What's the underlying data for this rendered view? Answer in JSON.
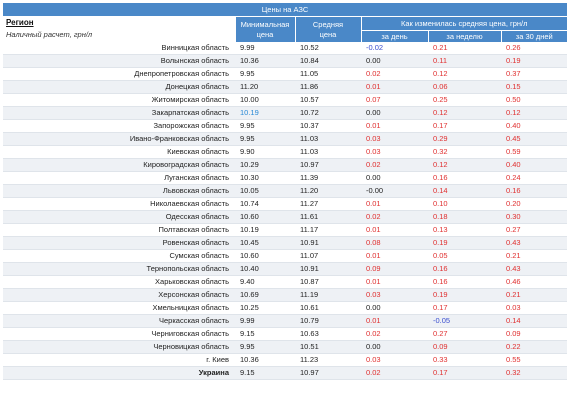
{
  "title": "Цены на АЗС",
  "header": {
    "region_label": "Регион",
    "region_sub": "Наличный расчет, грн/л",
    "min_price_line1": "Минимальная",
    "min_price_line2": "цена",
    "avg_price_line1": "Средняя",
    "avg_price_line2": "цена",
    "change_title": "Как изменилась средняя цена, грн/л",
    "per_day": "за день",
    "per_week": "за неделю",
    "per_30days": "за 30 дней"
  },
  "rows": [
    {
      "region": "Винницкая область",
      "min": "9.99",
      "avg": "10.52",
      "day": "-0.02",
      "week": "0.21",
      "month": "0.26"
    },
    {
      "region": "Волынская область",
      "min": "10.36",
      "avg": "10.84",
      "day": "0.00",
      "week": "0.11",
      "month": "0.19"
    },
    {
      "region": "Днепропетровская область",
      "min": "9.95",
      "avg": "11.05",
      "day": "0.02",
      "week": "0.12",
      "month": "0.37"
    },
    {
      "region": "Донецкая область",
      "min": "11.20",
      "avg": "11.86",
      "day": "0.01",
      "week": "0.06",
      "month": "0.15"
    },
    {
      "region": "Житомирская область",
      "min": "10.00",
      "avg": "10.57",
      "day": "0.07",
      "week": "0.25",
      "month": "0.50"
    },
    {
      "region": "Закарпатская область",
      "min": "10.19",
      "avg": "10.72",
      "day": "0.00",
      "week": "0.12",
      "month": "0.12"
    },
    {
      "region": "Запорожская область",
      "min": "9.95",
      "avg": "10.37",
      "day": "0.01",
      "week": "0.17",
      "month": "0.40"
    },
    {
      "region": "Ивано-Франковская область",
      "min": "9.95",
      "avg": "11.03",
      "day": "0.03",
      "week": "0.29",
      "month": "0.45"
    },
    {
      "region": "Киевская область",
      "min": "9.90",
      "avg": "11.03",
      "day": "0.03",
      "week": "0.32",
      "month": "0.59"
    },
    {
      "region": "Кировоградская область",
      "min": "10.29",
      "avg": "10.97",
      "day": "0.02",
      "week": "0.12",
      "month": "0.40"
    },
    {
      "region": "Луганская область",
      "min": "10.30",
      "avg": "11.39",
      "day": "0.00",
      "week": "0.16",
      "month": "0.24"
    },
    {
      "region": "Львовская область",
      "min": "10.05",
      "avg": "11.20",
      "day": "-0.00",
      "week": "0.14",
      "month": "0.16"
    },
    {
      "region": "Николаевская область",
      "min": "10.74",
      "avg": "11.27",
      "day": "0.01",
      "week": "0.10",
      "month": "0.20"
    },
    {
      "region": "Одесская область",
      "min": "10.60",
      "avg": "11.61",
      "day": "0.02",
      "week": "0.18",
      "month": "0.30"
    },
    {
      "region": "Полтавская область",
      "min": "10.19",
      "avg": "11.17",
      "day": "0.01",
      "week": "0.13",
      "month": "0.27"
    },
    {
      "region": "Ровенская область",
      "min": "10.45",
      "avg": "10.91",
      "day": "0.08",
      "week": "0.19",
      "month": "0.43"
    },
    {
      "region": "Сумская область",
      "min": "10.60",
      "avg": "11.07",
      "day": "0.01",
      "week": "0.05",
      "month": "0.21"
    },
    {
      "region": "Тернопольская область",
      "min": "10.40",
      "avg": "10.91",
      "day": "0.09",
      "week": "0.16",
      "month": "0.43"
    },
    {
      "region": "Харьковская область",
      "min": "9.40",
      "avg": "10.87",
      "day": "0.01",
      "week": "0.16",
      "month": "0.46"
    },
    {
      "region": "Херсонская область",
      "min": "10.69",
      "avg": "11.19",
      "day": "0.03",
      "week": "0.19",
      "month": "0.21"
    },
    {
      "region": "Хмельницкая область",
      "min": "10.25",
      "avg": "10.61",
      "day": "0.00",
      "week": "0.17",
      "month": "0.03"
    },
    {
      "region": "Черкасская область",
      "min": "9.99",
      "avg": "10.79",
      "day": "0.01",
      "week": "-0.05",
      "month": "0.14"
    },
    {
      "region": "Черниговская область",
      "min": "9.15",
      "avg": "10.63",
      "day": "0.02",
      "week": "0.27",
      "month": "0.09"
    },
    {
      "region": "Черновицкая область",
      "min": "9.95",
      "avg": "10.51",
      "day": "0.00",
      "week": "0.09",
      "month": "0.22"
    },
    {
      "region": "г. Киев",
      "min": "10.36",
      "avg": "11.23",
      "day": "0.03",
      "week": "0.33",
      "month": "0.55"
    }
  ],
  "total": {
    "region": "Украина",
    "min": "9.15",
    "avg": "10.97",
    "day": "0.02",
    "week": "0.17",
    "month": "0.32"
  },
  "colors": {
    "header_bg": "#4a88c8",
    "positive": "#e03030",
    "negative": "#3b4fd0",
    "highlight_min": "#2a8ad6"
  }
}
